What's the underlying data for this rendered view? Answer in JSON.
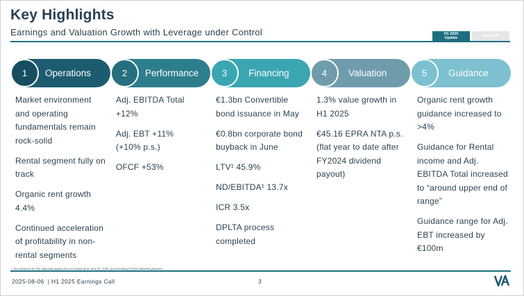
{
  "header": {
    "title": "Key Highlights",
    "subtitle": "Earnings and Valuation Growth with Leverage under Control",
    "tags": [
      {
        "line1": "H1 2025",
        "line2": "Update",
        "state": "active"
      },
      {
        "line1": "Appendix",
        "line2": "",
        "state": "inactive"
      }
    ]
  },
  "steps": [
    {
      "number": "1",
      "label": "Operations",
      "color": "#1d5c70",
      "circle_color": "#164d60"
    },
    {
      "number": "2",
      "label": "Performance",
      "color": "#2d7e8d",
      "circle_color": "#266f7e"
    },
    {
      "number": "3",
      "label": "Financing",
      "color": "#3aa6b2",
      "circle_color": "#3aa6b2"
    },
    {
      "number": "4",
      "label": "Valuation",
      "color": "#6f9cab",
      "circle_color": "#6f9cab"
    },
    {
      "number": "5",
      "label": "Guidance",
      "color": "#7dc0cf",
      "circle_color": "#7dc0cf"
    }
  ],
  "columns": [
    {
      "items": [
        "Market environment and operating fundamentals remain rock-solid",
        "Rental segment fully on track",
        "Organic rent growth 4.4%",
        "Continued acceleration of profitability in non-rental segments"
      ]
    },
    {
      "items": [
        "Adj. EBITDA Total +12%",
        "Adj. EBT +11% (+10% p.s.)",
        "OFCF +53%"
      ]
    },
    {
      "items": [
        "€1.3bn Convertible bond issuance in May",
        "€0.8bn corporate bond buyback in June",
        "LTV¹ 45.9%",
        "ND/EBITDA¹ 13.7x",
        "ICR 3.5x",
        "DPLTA process completed"
      ]
    },
    {
      "items": [
        "1.3% value growth in H1 2025",
        "€45.16 EPRA NTA p.s. (flat year to date after FY2024 dividend payout)"
      ]
    },
    {
      "items": [
        "Organic rent growth guidance increased to >4%",
        "Guidance for Rental income and Adj. EBITDA Total increased to “around upper end of range”",
        "Guidance range for Adj. EBT increased by €100m"
      ]
    }
  ],
  "footer": {
    "footnote": "¹ Pro forma for €1.7bn disposals signed but not closed as of June 30, 2025, and including FY2024 dividend payment.",
    "date": "2025-08-06",
    "event": "H1 2025 Earnings Call",
    "page": "3",
    "logo": "VA"
  },
  "colors": {
    "brand": "#1d6f80",
    "text": "#2b4150"
  }
}
